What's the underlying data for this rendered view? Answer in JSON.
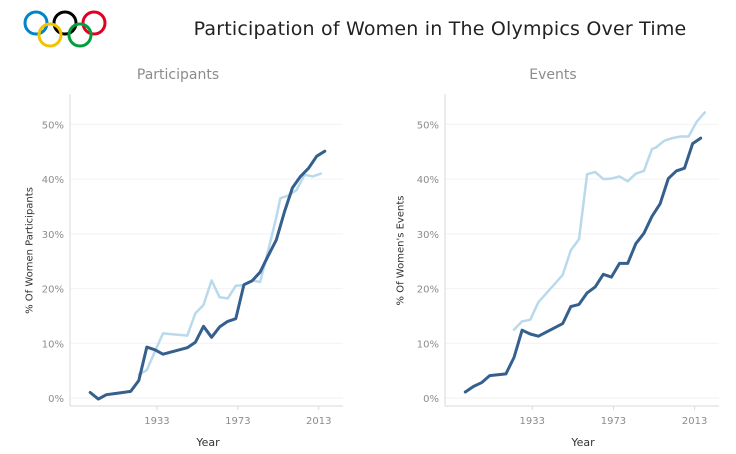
{
  "title": "Participation of Women in The Olympics Over Time",
  "colors": {
    "women_dark": "#355f8c",
    "women_light": "#b9d9ec",
    "axis": "#d9d9d9",
    "grid": "#f2f2f2",
    "tick_text": "#8c8c8c",
    "ring_blue": "#0085c7",
    "ring_yellow": "#f4c300",
    "ring_black": "#000000",
    "ring_green": "#009f3d",
    "ring_red": "#df0024"
  },
  "logo": {
    "icon": "olympic-rings-icon"
  },
  "chart_data": [
    {
      "type": "line",
      "title": "Participants",
      "xlabel": "Year",
      "ylabel": "% Of Women Participants",
      "xlim": [
        1890,
        2025
      ],
      "ylim": [
        0,
        0.53
      ],
      "yticks": [
        0,
        0.1,
        0.2,
        0.3,
        0.4,
        0.5
      ],
      "ytick_labels": [
        "0%",
        "10%",
        "20%",
        "30%",
        "40%",
        "50%"
      ],
      "xticks": [
        1933,
        1973,
        2013
      ],
      "xtick_labels": [
        "1933",
        "1973",
        "2013"
      ],
      "series": [
        {
          "color": "#b9d9ec",
          "x": [
            1924,
            1928,
            1932,
            1936,
            1948,
            1952,
            1956,
            1960,
            1964,
            1968,
            1972,
            1976,
            1980,
            1984,
            1988,
            1992,
            1994,
            1998,
            2002,
            2006,
            2010,
            2014
          ],
          "y": [
            0.043,
            0.051,
            0.085,
            0.118,
            0.114,
            0.155,
            0.17,
            0.215,
            0.184,
            0.182,
            0.205,
            0.206,
            0.215,
            0.212,
            0.27,
            0.33,
            0.365,
            0.37,
            0.38,
            0.408,
            0.405,
            0.41
          ]
        },
        {
          "color": "#355f8c",
          "x": [
            1900,
            1904,
            1908,
            1912,
            1920,
            1924,
            1928,
            1932,
            1936,
            1948,
            1952,
            1956,
            1960,
            1964,
            1968,
            1972,
            1976,
            1980,
            1984,
            1988,
            1992,
            1996,
            2000,
            2004,
            2008,
            2012,
            2016
          ],
          "y": [
            0.01,
            -0.002,
            0.006,
            0.008,
            0.012,
            0.032,
            0.093,
            0.088,
            0.08,
            0.092,
            0.102,
            0.131,
            0.111,
            0.13,
            0.14,
            0.145,
            0.207,
            0.214,
            0.23,
            0.26,
            0.289,
            0.34,
            0.384,
            0.405,
            0.42,
            0.442,
            0.451
          ]
        }
      ]
    },
    {
      "type": "line",
      "title": "Events",
      "xlabel": "Year",
      "ylabel": "% Of Women's Events",
      "xlim": [
        1890,
        2025
      ],
      "ylim": [
        0,
        0.53
      ],
      "yticks": [
        0,
        0.1,
        0.2,
        0.3,
        0.4,
        0.5
      ],
      "ytick_labels": [
        "0%",
        "10%",
        "20%",
        "30%",
        "40%",
        "50%"
      ],
      "xticks": [
        1933,
        1973,
        2013
      ],
      "xtick_labels": [
        "1933",
        "1973",
        "2013"
      ],
      "series": [
        {
          "color": "#b9d9ec",
          "x": [
            1924,
            1928,
            1932,
            1936,
            1948,
            1952,
            1956,
            1960,
            1964,
            1968,
            1972,
            1976,
            1980,
            1984,
            1988,
            1992,
            1994,
            1998,
            2002,
            2006,
            2010,
            2014,
            2018
          ],
          "y": [
            0.125,
            0.14,
            0.143,
            0.175,
            0.225,
            0.27,
            0.29,
            0.409,
            0.413,
            0.4,
            0.401,
            0.405,
            0.396,
            0.41,
            0.415,
            0.455,
            0.458,
            0.47,
            0.475,
            0.478,
            0.478,
            0.505,
            0.522
          ]
        },
        {
          "color": "#355f8c",
          "x": [
            1900,
            1904,
            1908,
            1912,
            1920,
            1924,
            1928,
            1932,
            1936,
            1948,
            1952,
            1956,
            1960,
            1964,
            1968,
            1972,
            1976,
            1980,
            1984,
            1988,
            1992,
            1996,
            2000,
            2004,
            2008,
            2012,
            2016
          ],
          "y": [
            0.011,
            0.021,
            0.028,
            0.041,
            0.044,
            0.074,
            0.124,
            0.117,
            0.113,
            0.136,
            0.167,
            0.171,
            0.192,
            0.203,
            0.226,
            0.221,
            0.246,
            0.246,
            0.282,
            0.301,
            0.332,
            0.355,
            0.401,
            0.415,
            0.42,
            0.465,
            0.475
          ]
        }
      ]
    }
  ]
}
